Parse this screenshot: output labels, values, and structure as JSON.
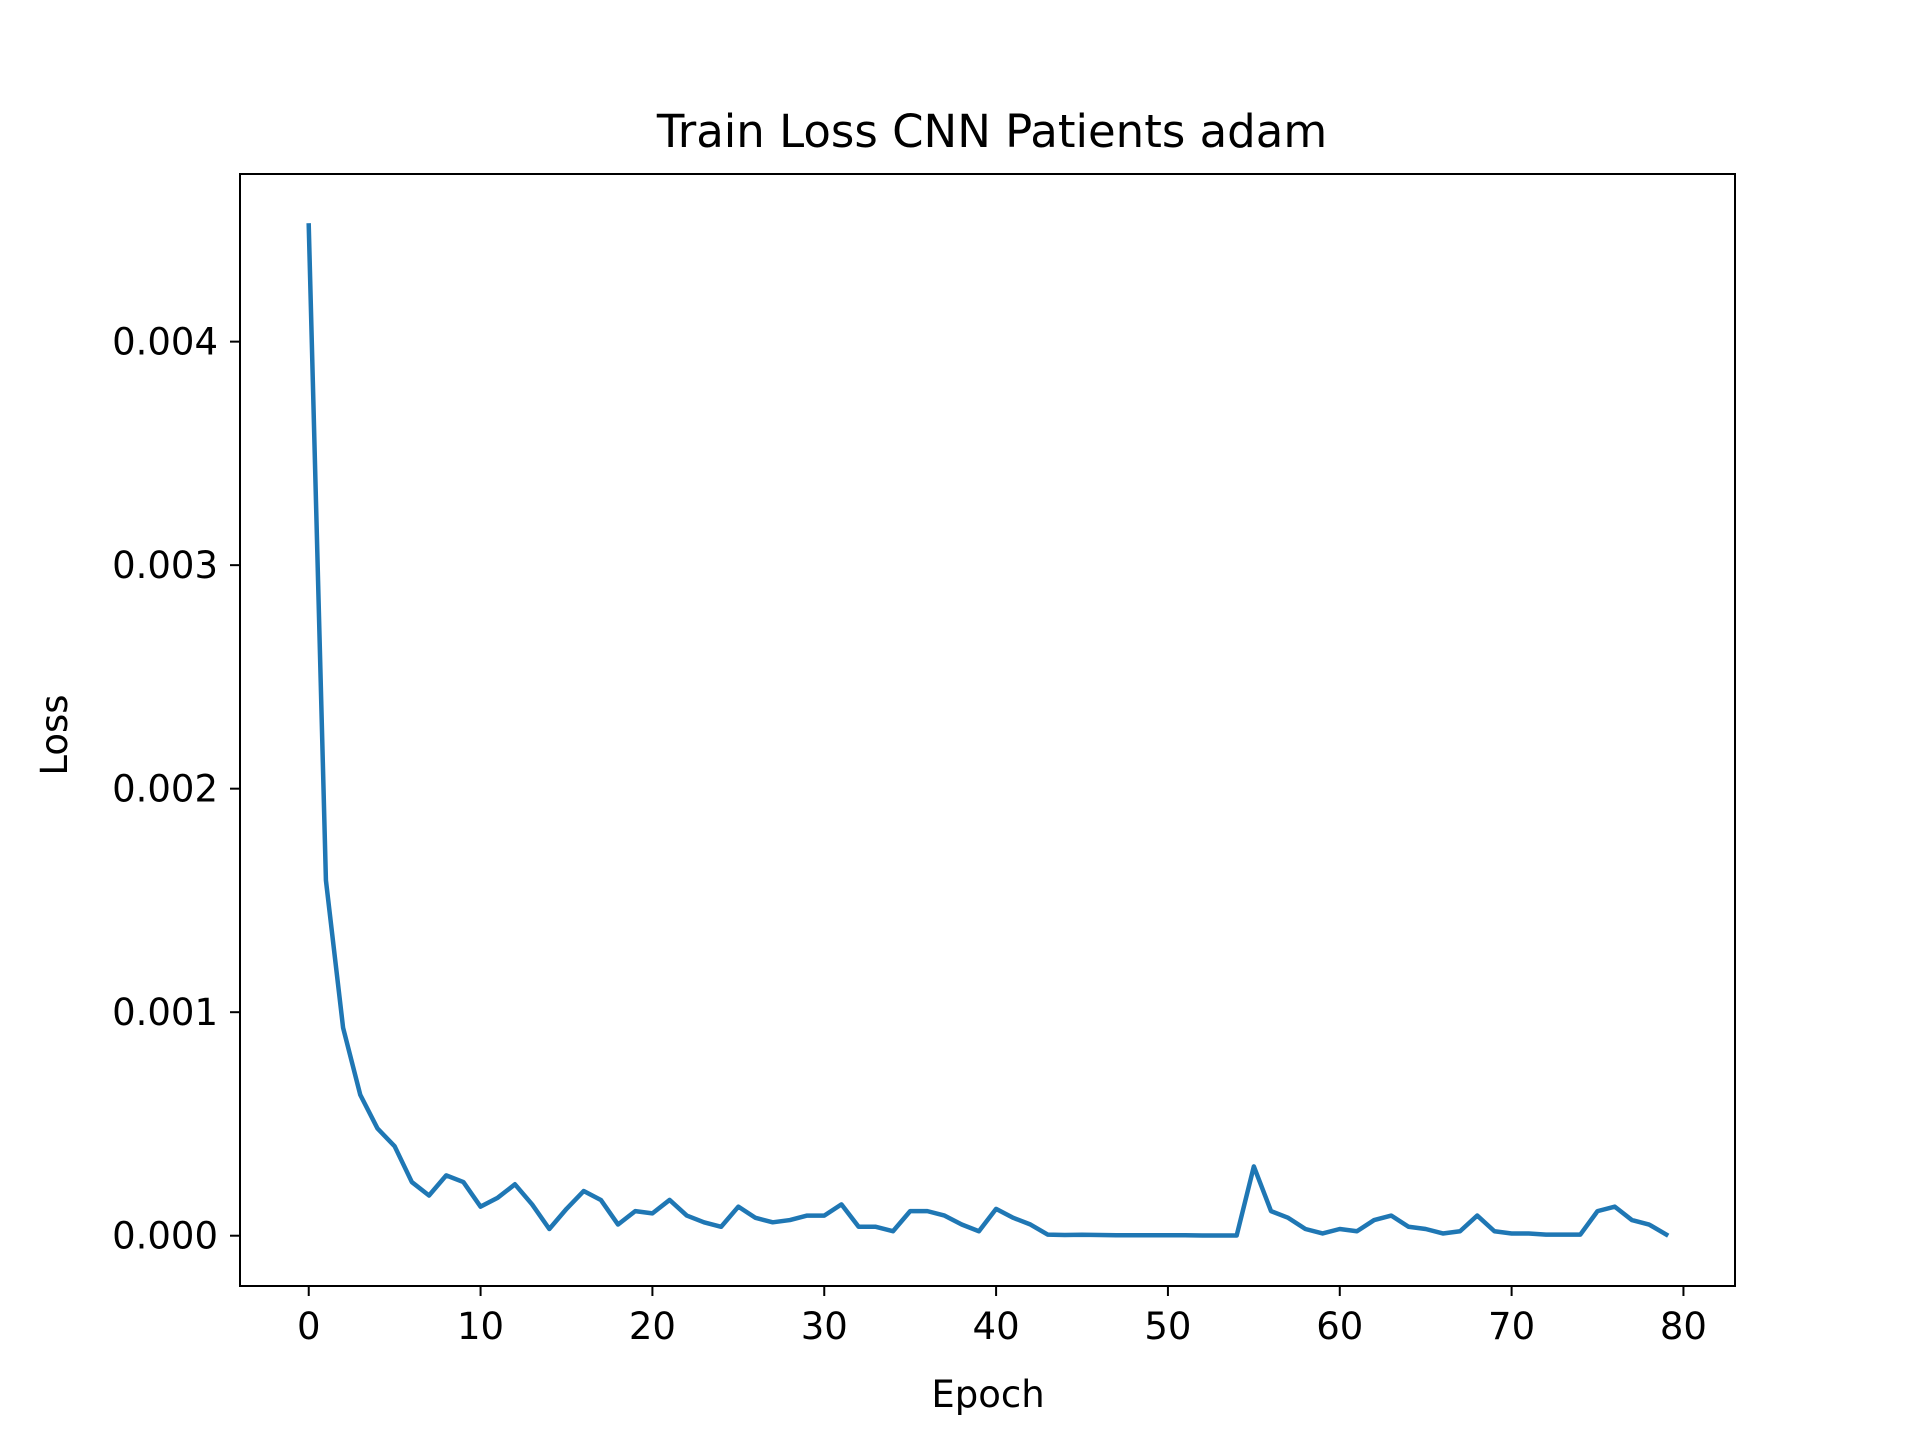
{
  "chart_data": {
    "type": "line",
    "title": "Train Loss CNN Patients adam",
    "xlabel": "Epoch",
    "ylabel": "Loss",
    "xlim": [
      -4,
      83
    ],
    "ylim": [
      -0.000225,
      0.00475
    ],
    "xticks": [
      0,
      10,
      20,
      30,
      40,
      50,
      60,
      70,
      80
    ],
    "yticks": [
      0.0,
      0.001,
      0.002,
      0.003,
      0.004
    ],
    "xtick_labels": [
      "0",
      "10",
      "20",
      "30",
      "40",
      "50",
      "60",
      "70",
      "80"
    ],
    "ytick_labels": [
      "0.000",
      "0.001",
      "0.002",
      "0.003",
      "0.004"
    ],
    "grid": false,
    "legend": "none",
    "series": [
      {
        "color": "#1f77b4",
        "x": [
          0,
          1,
          2,
          3,
          4,
          5,
          6,
          7,
          8,
          9,
          10,
          11,
          12,
          13,
          14,
          15,
          16,
          17,
          18,
          19,
          20,
          21,
          22,
          23,
          24,
          25,
          26,
          27,
          28,
          29,
          30,
          31,
          32,
          33,
          34,
          35,
          36,
          37,
          38,
          39,
          40,
          41,
          42,
          43,
          44,
          45,
          46,
          47,
          48,
          49,
          50,
          51,
          52,
          53,
          54,
          55,
          56,
          57,
          58,
          59,
          60,
          61,
          62,
          63,
          64,
          65,
          66,
          67,
          68,
          69,
          70,
          71,
          72,
          73,
          74,
          75,
          76,
          77,
          78,
          79
        ],
        "y": [
          0.00452,
          0.00159,
          0.00093,
          0.00063,
          0.00048,
          0.0004,
          0.00024,
          0.00018,
          0.00027,
          0.00024,
          0.00013,
          0.00017,
          0.00023,
          0.00014,
          3e-05,
          0.00012,
          0.0002,
          0.00016,
          5e-05,
          0.00011,
          0.0001,
          0.00016,
          9e-05,
          6e-05,
          4e-05,
          0.00013,
          8e-05,
          6e-05,
          7e-05,
          9e-05,
          9e-05,
          0.00014,
          4e-05,
          4e-05,
          2e-05,
          0.00011,
          0.00011,
          9e-05,
          5e-05,
          2e-05,
          0.00012,
          8e-05,
          5e-05,
          5e-06,
          3e-06,
          4e-06,
          3e-06,
          2e-06,
          2e-06,
          2e-06,
          2e-06,
          2e-06,
          1e-06,
          1e-06,
          1e-06,
          0.00031,
          0.00011,
          8e-05,
          3e-05,
          1e-05,
          3e-05,
          2e-05,
          7e-05,
          9e-05,
          4e-05,
          3e-05,
          1e-05,
          2e-05,
          9e-05,
          2e-05,
          1e-05,
          1e-05,
          5e-06,
          5e-06,
          5e-06,
          0.00011,
          0.00013,
          7e-05,
          5e-05,
          5e-06
        ]
      }
    ]
  }
}
